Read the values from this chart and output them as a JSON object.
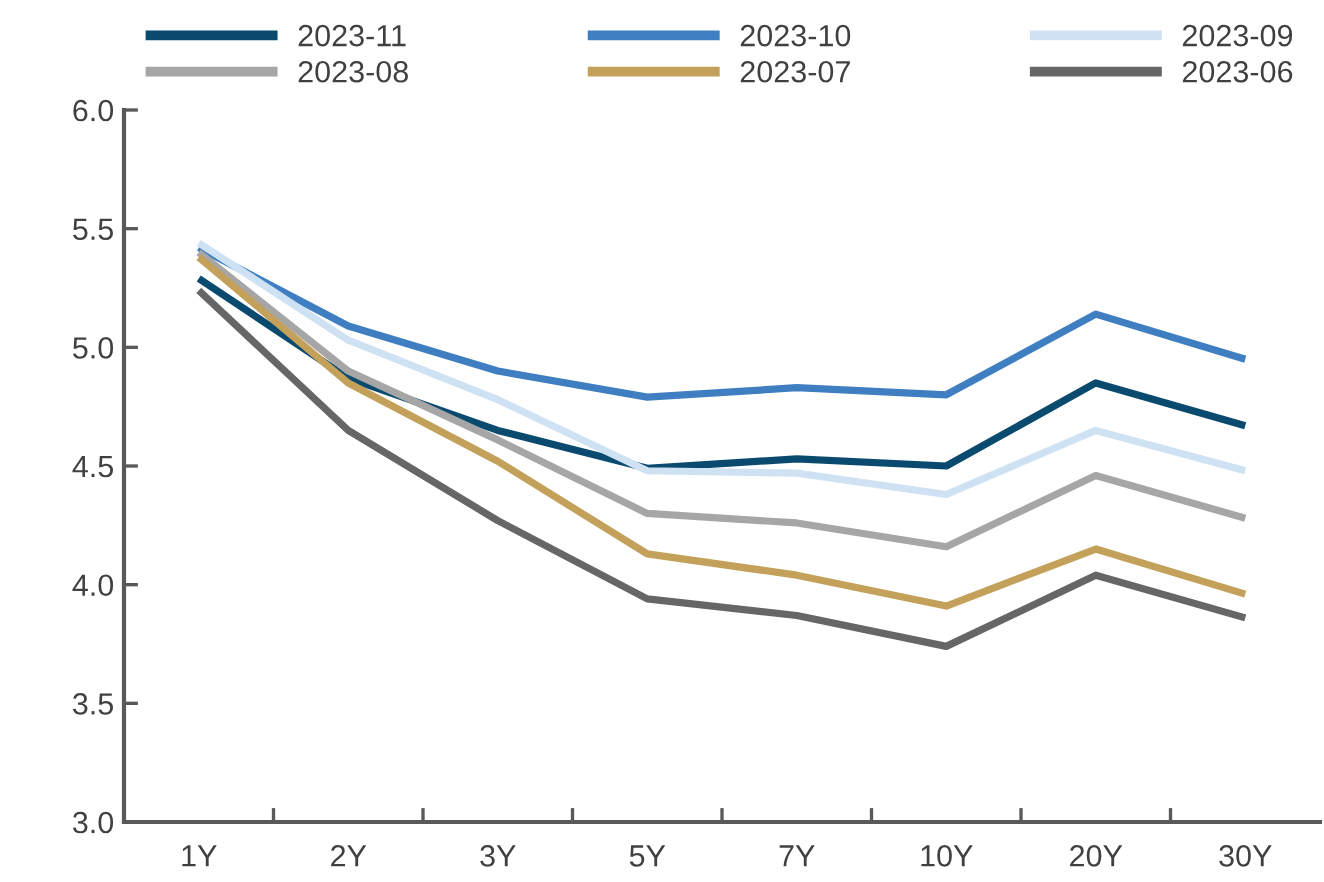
{
  "chart_data": {
    "type": "line",
    "categories": [
      "1Y",
      "2Y",
      "3Y",
      "5Y",
      "7Y",
      "10Y",
      "20Y",
      "30Y"
    ],
    "series": [
      {
        "name": "2023-11",
        "color": "#0b4a6f",
        "values": [
          5.29,
          4.87,
          4.65,
          4.49,
          4.53,
          4.5,
          4.85,
          4.67
        ]
      },
      {
        "name": "2023-10",
        "color": "#3f7fc1",
        "values": [
          5.42,
          5.09,
          4.9,
          4.79,
          4.83,
          4.8,
          5.14,
          4.95
        ]
      },
      {
        "name": "2023-09",
        "color": "#cfe2f3",
        "values": [
          5.44,
          5.03,
          4.78,
          4.48,
          4.47,
          4.38,
          4.65,
          4.48
        ]
      },
      {
        "name": "2023-08",
        "color": "#a6a6a6",
        "values": [
          5.4,
          4.9,
          4.61,
          4.3,
          4.26,
          4.16,
          4.46,
          4.28
        ]
      },
      {
        "name": "2023-07",
        "color": "#c4a15a",
        "values": [
          5.38,
          4.85,
          4.52,
          4.13,
          4.04,
          3.91,
          4.15,
          3.96
        ]
      },
      {
        "name": "2023-06",
        "color": "#666666",
        "values": [
          5.24,
          4.65,
          4.27,
          3.94,
          3.87,
          3.74,
          4.04,
          3.86
        ]
      }
    ],
    "ylim": [
      3.0,
      6.0
    ],
    "yticks": [
      {
        "value": 3.0,
        "label": "3.0"
      },
      {
        "value": 3.5,
        "label": "3.5"
      },
      {
        "value": 4.0,
        "label": "4.0"
      },
      {
        "value": 4.5,
        "label": "4.5"
      },
      {
        "value": 5.0,
        "label": "5.0"
      },
      {
        "value": 5.5,
        "label": "5.5"
      },
      {
        "value": 6.0,
        "label": "6.0"
      }
    ],
    "grid": false,
    "legend": "top",
    "marker": "none",
    "line_style": "solid"
  }
}
